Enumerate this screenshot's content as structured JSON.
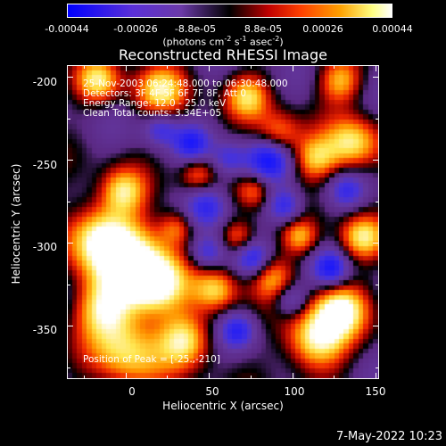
{
  "chart_data": {
    "type": "heatmap",
    "title": "Reconstructed RHESSI Image",
    "xlabel": "Heliocentric X (arcsec)",
    "ylabel": "Heliocentric Y (arcsec)",
    "xlim": [
      -35,
      152
    ],
    "ylim": [
      -382,
      -193
    ],
    "x_ticks": [
      "0",
      "50",
      "100",
      "150"
    ],
    "x_tick_values": [
      0,
      50,
      100,
      150
    ],
    "y_ticks": [
      "-200",
      "-250",
      "-300",
      "-350"
    ],
    "y_tick_values": [
      -200,
      -250,
      -300,
      -350
    ],
    "colorbar": {
      "ticks": [
        "-0.00044",
        "-0.00026",
        "-8.8e-05",
        "8.8e-05",
        "0.00026",
        "0.00044"
      ],
      "tick_values": [
        -0.00044,
        -0.00026,
        -8.8e-05,
        8.8e-05,
        0.00026,
        0.00044
      ],
      "units": "(photons cm-2 s-1 asec-2)",
      "colors": [
        "#0000ff",
        "#8040c0",
        "#000000",
        "#ff0000",
        "#ffa000",
        "#ffffff"
      ]
    },
    "annotations": {
      "time": "25-Nov-2003 06:24:48.000 to 06:30:48.000",
      "detectors": "Detectors: 3F 4F 5F 6F 7F 8F, Att 0",
      "energy": "Energy Range: 12.0 - 25.0 keV",
      "method": "Clean     Total counts: 3.34E+05",
      "peak": "Position of Peak = [-25.,-210]"
    }
  },
  "footer": {
    "date": "7-May-2022 10:23"
  }
}
